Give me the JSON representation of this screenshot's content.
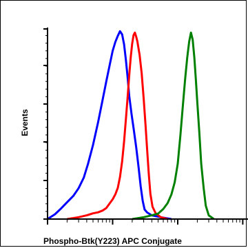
{
  "chart_data": {
    "type": "line",
    "title": "",
    "xlabel": "Phospho-Btk(Y223) APC Conjugate",
    "ylabel": "Events",
    "x_scale": "log",
    "xlim": [
      1,
      1000
    ],
    "ylim": [
      0,
      100
    ],
    "grid": false,
    "legend": "none",
    "series": [
      {
        "color": "#0000ff",
        "points": [
          [
            1,
            0
          ],
          [
            1.3,
            3
          ],
          [
            1.6,
            6
          ],
          [
            2,
            9
          ],
          [
            2.5,
            12
          ],
          [
            3,
            16
          ],
          [
            3.6,
            22
          ],
          [
            4.2,
            30
          ],
          [
            5,
            40
          ],
          [
            6,
            52
          ],
          [
            7,
            63
          ],
          [
            8,
            73
          ],
          [
            9,
            82
          ],
          [
            10,
            90
          ],
          [
            11,
            95
          ],
          [
            12,
            98
          ],
          [
            13,
            100
          ],
          [
            14,
            98
          ],
          [
            15,
            93
          ],
          [
            16,
            85
          ],
          [
            17,
            76
          ],
          [
            18,
            66
          ],
          [
            19.5,
            56
          ],
          [
            21,
            48
          ],
          [
            23,
            38
          ],
          [
            25,
            28
          ],
          [
            27,
            18
          ],
          [
            29,
            10
          ],
          [
            31,
            5
          ],
          [
            34,
            3
          ],
          [
            40,
            2
          ],
          [
            55,
            1
          ],
          [
            80,
            0
          ]
        ]
      },
      {
        "color": "#ff0000",
        "points": [
          [
            2,
            0
          ],
          [
            3,
            1
          ],
          [
            4,
            2
          ],
          [
            5,
            3
          ],
          [
            6,
            4
          ],
          [
            7,
            5
          ],
          [
            8,
            6
          ],
          [
            9,
            8
          ],
          [
            10,
            10
          ],
          [
            11,
            13
          ],
          [
            12,
            17
          ],
          [
            13,
            23
          ],
          [
            14,
            31
          ],
          [
            15,
            41
          ],
          [
            16,
            53
          ],
          [
            17,
            65
          ],
          [
            18,
            77
          ],
          [
            19,
            87
          ],
          [
            20,
            94
          ],
          [
            21,
            98
          ],
          [
            22,
            99
          ],
          [
            23,
            97
          ],
          [
            24,
            95
          ],
          [
            26,
            88
          ],
          [
            28,
            78
          ],
          [
            30,
            64
          ],
          [
            32,
            50
          ],
          [
            34,
            36
          ],
          [
            36,
            24
          ],
          [
            38,
            14
          ],
          [
            41,
            7
          ],
          [
            46,
            3
          ],
          [
            55,
            1
          ],
          [
            70,
            0
          ]
        ]
      },
      {
        "color": "#008000",
        "points": [
          [
            20,
            0
          ],
          [
            30,
            1
          ],
          [
            40,
            2
          ],
          [
            50,
            3
          ],
          [
            60,
            5
          ],
          [
            70,
            8
          ],
          [
            80,
            13
          ],
          [
            90,
            20
          ],
          [
            100,
            30
          ],
          [
            110,
            45
          ],
          [
            120,
            60
          ],
          [
            130,
            74
          ],
          [
            140,
            86
          ],
          [
            150,
            95
          ],
          [
            160,
            100
          ],
          [
            170,
            96
          ],
          [
            180,
            86
          ],
          [
            190,
            74
          ],
          [
            200,
            62
          ],
          [
            215,
            46
          ],
          [
            230,
            30
          ],
          [
            250,
            17
          ],
          [
            270,
            7
          ],
          [
            300,
            2
          ],
          [
            360,
            0
          ]
        ]
      }
    ]
  }
}
